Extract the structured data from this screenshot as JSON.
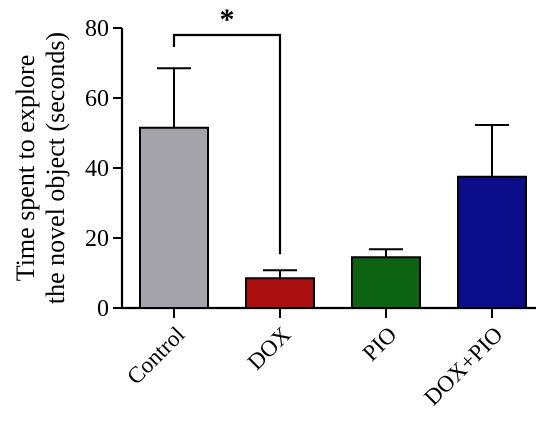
{
  "chart_data": {
    "type": "bar",
    "ylabel_lines": [
      "Time spent to explore",
      "the novel object (seconds)"
    ],
    "categories": [
      "Control",
      "DOX",
      "PIO",
      "DOX+PIO"
    ],
    "values": [
      51.5,
      8.5,
      14.5,
      37.5
    ],
    "errors": [
      17,
      2.3,
      2.3,
      14.8
    ],
    "colors": [
      "#a3a3a9",
      "#ab0f0f",
      "#0c6312",
      "#0b0d8a"
    ],
    "ylim": [
      0,
      80
    ],
    "yticks": [
      0,
      20,
      40,
      60,
      80
    ],
    "grid": false,
    "annotations": [
      {
        "type": "significance",
        "from": "Control",
        "to": "DOX",
        "y": 78,
        "label": "*"
      }
    ]
  }
}
